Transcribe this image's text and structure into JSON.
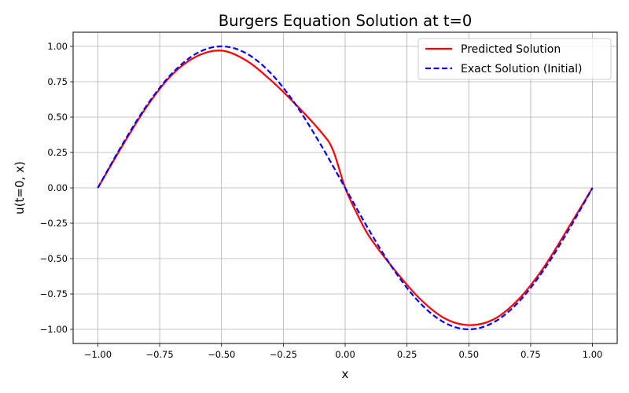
{
  "chart_data": {
    "type": "line",
    "title": "Burgers Equation Solution at t=0",
    "xlabel": "x",
    "ylabel": "u(t=0, x)",
    "xlim": [
      -1.1,
      1.1
    ],
    "ylim": [
      -1.1,
      1.1
    ],
    "x_ticks": [
      -1.0,
      -0.75,
      -0.5,
      -0.25,
      0.0,
      0.25,
      0.5,
      0.75,
      1.0
    ],
    "x_tick_labels": [
      "−1.00",
      "−0.75",
      "−0.50",
      "−0.25",
      "0.00",
      "0.25",
      "0.50",
      "0.75",
      "1.00"
    ],
    "y_ticks": [
      -1.0,
      -0.75,
      -0.5,
      -0.25,
      0.0,
      0.25,
      0.5,
      0.75,
      1.0
    ],
    "y_tick_labels": [
      "−1.00",
      "−0.75",
      "−0.50",
      "−0.25",
      "0.00",
      "0.25",
      "0.50",
      "0.75",
      "1.00"
    ],
    "grid": true,
    "legend_position": "top-right",
    "series": [
      {
        "name": "Predicted Solution",
        "color": "#ff0000",
        "style": "solid",
        "x": [
          -1.0,
          -0.9,
          -0.8,
          -0.7,
          -0.6,
          -0.5,
          -0.4,
          -0.3,
          -0.2,
          -0.1,
          -0.05,
          0.0,
          0.05,
          0.1,
          0.2,
          0.3,
          0.4,
          0.5,
          0.6,
          0.7,
          0.8,
          0.9,
          1.0
        ],
        "y": [
          0.0,
          0.3,
          0.58,
          0.8,
          0.93,
          0.97,
          0.9,
          0.76,
          0.59,
          0.4,
          0.27,
          0.0,
          -0.19,
          -0.35,
          -0.58,
          -0.78,
          -0.92,
          -0.97,
          -0.93,
          -0.79,
          -0.57,
          -0.29,
          0.0
        ]
      },
      {
        "name": "Exact Solution (Initial)",
        "color": "#0000ff",
        "style": "dashed",
        "x": [
          -1.0,
          -0.9,
          -0.8,
          -0.7,
          -0.6,
          -0.5,
          -0.4,
          -0.3,
          -0.2,
          -0.1,
          0.0,
          0.1,
          0.2,
          0.3,
          0.4,
          0.5,
          0.6,
          0.7,
          0.8,
          0.9,
          1.0
        ],
        "y": [
          0.0,
          0.309,
          0.588,
          0.809,
          0.951,
          1.0,
          0.951,
          0.809,
          0.588,
          0.309,
          0.0,
          -0.309,
          -0.588,
          -0.809,
          -0.951,
          -1.0,
          -0.951,
          -0.809,
          -0.588,
          -0.309,
          0.0
        ]
      }
    ]
  }
}
